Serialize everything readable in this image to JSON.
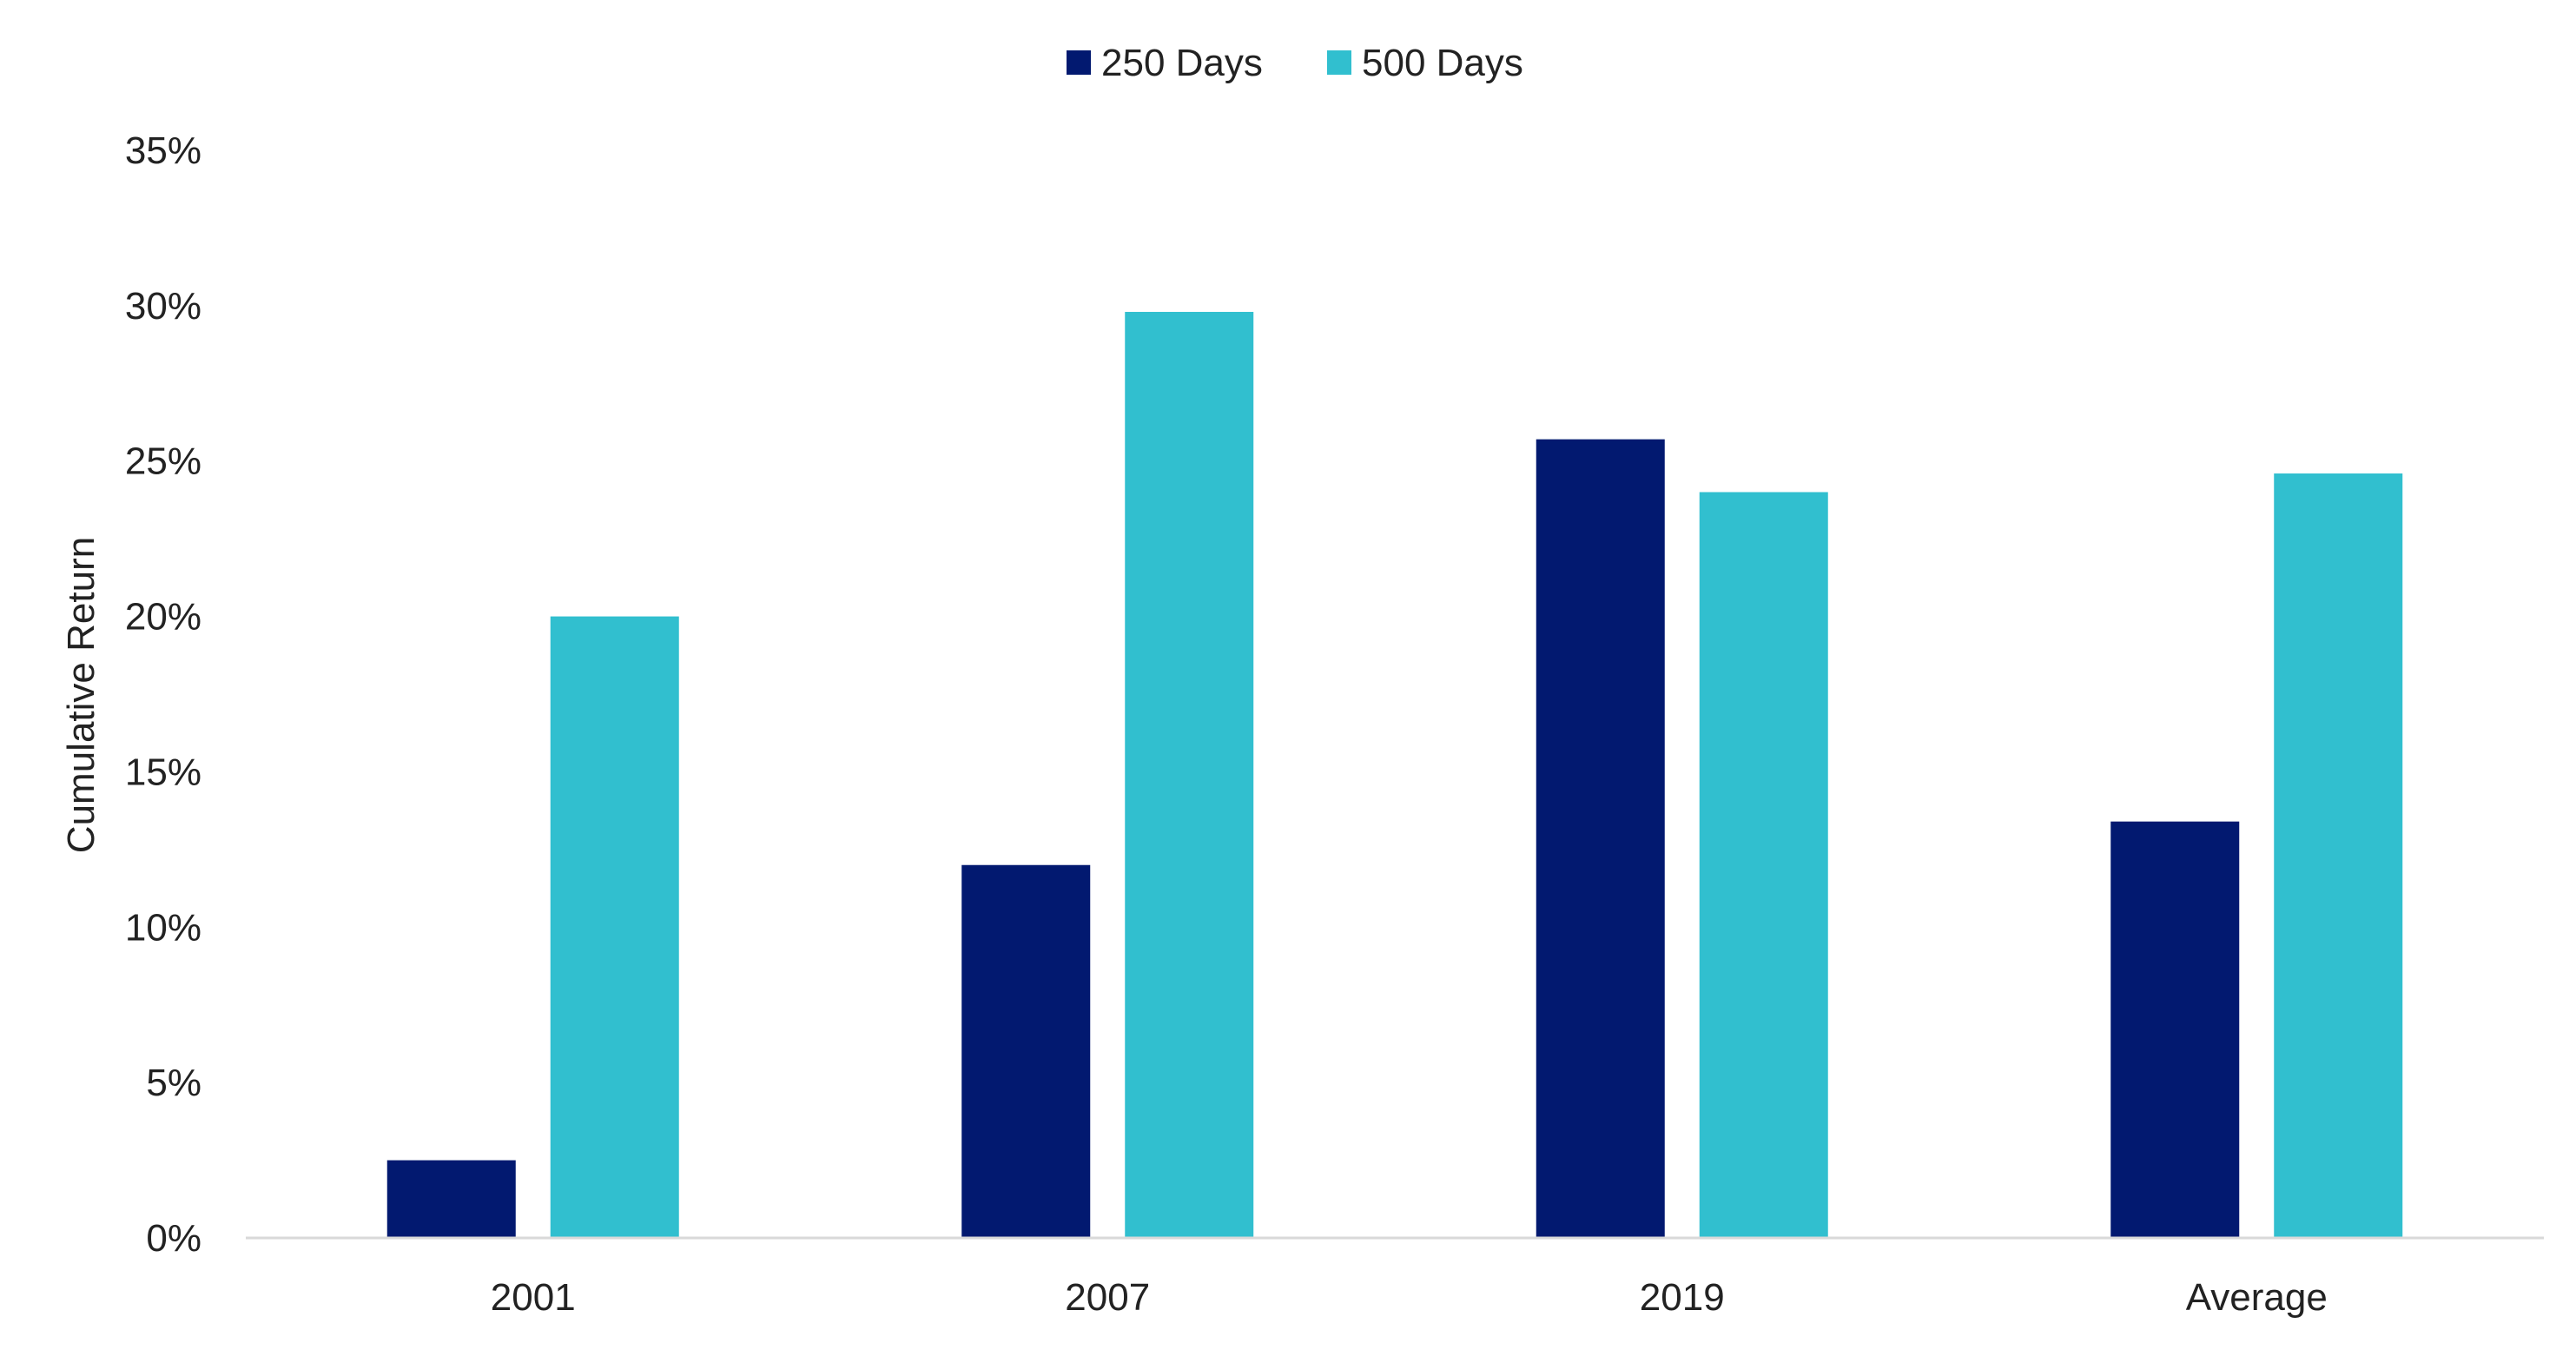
{
  "chart_data": {
    "type": "bar",
    "title": "",
    "xlabel": "",
    "ylabel": "Cumulative Return",
    "categories": [
      "2001",
      "2007",
      "2019",
      "Average"
    ],
    "series": [
      {
        "name": "250 Days",
        "color": "#021970",
        "values": [
          2.5,
          12.0,
          25.7,
          13.4
        ]
      },
      {
        "name": "500 Days",
        "color": "#31BFCF",
        "values": [
          20.0,
          29.8,
          24.0,
          24.6
        ]
      }
    ],
    "ylim": [
      0,
      35
    ],
    "y_ticks": [
      0,
      5,
      10,
      15,
      20,
      25,
      30,
      35
    ],
    "y_tick_labels": [
      "0%",
      "5%",
      "10%",
      "15%",
      "20%",
      "25%",
      "30%",
      "35%"
    ],
    "grid": false,
    "legend_position": "top-center"
  }
}
